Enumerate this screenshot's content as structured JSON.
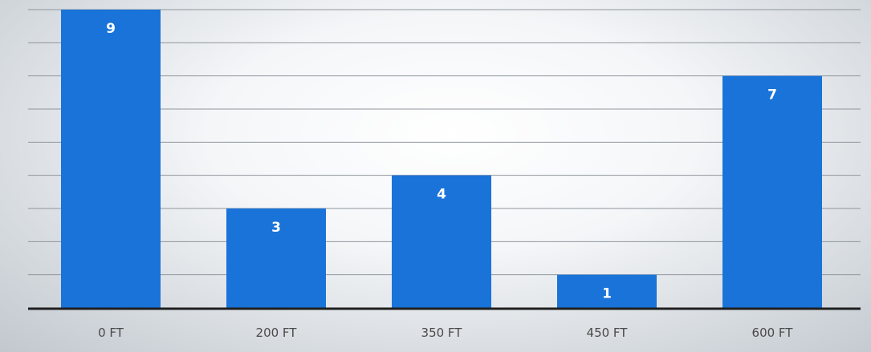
{
  "chart_data": {
    "type": "bar",
    "categories": [
      "0 FT",
      "200 FT",
      "350 FT",
      "450 FT",
      "600 FT"
    ],
    "values": [
      9,
      3,
      4,
      1,
      7
    ],
    "data_labels": [
      "9",
      "3",
      "4",
      "1",
      "7"
    ],
    "title": "",
    "xlabel": "",
    "ylabel": "",
    "ylim": [
      0,
      9
    ],
    "grid": true,
    "gridline_count": 9,
    "y_tick_labels_visible": false,
    "legend": "none",
    "colors": {
      "bar": "#1a73d9",
      "data_label": "#ffffff",
      "gridline": "#8f969c",
      "baseline": "#1f1f1f",
      "tick_label": "#4a4a4a"
    }
  }
}
